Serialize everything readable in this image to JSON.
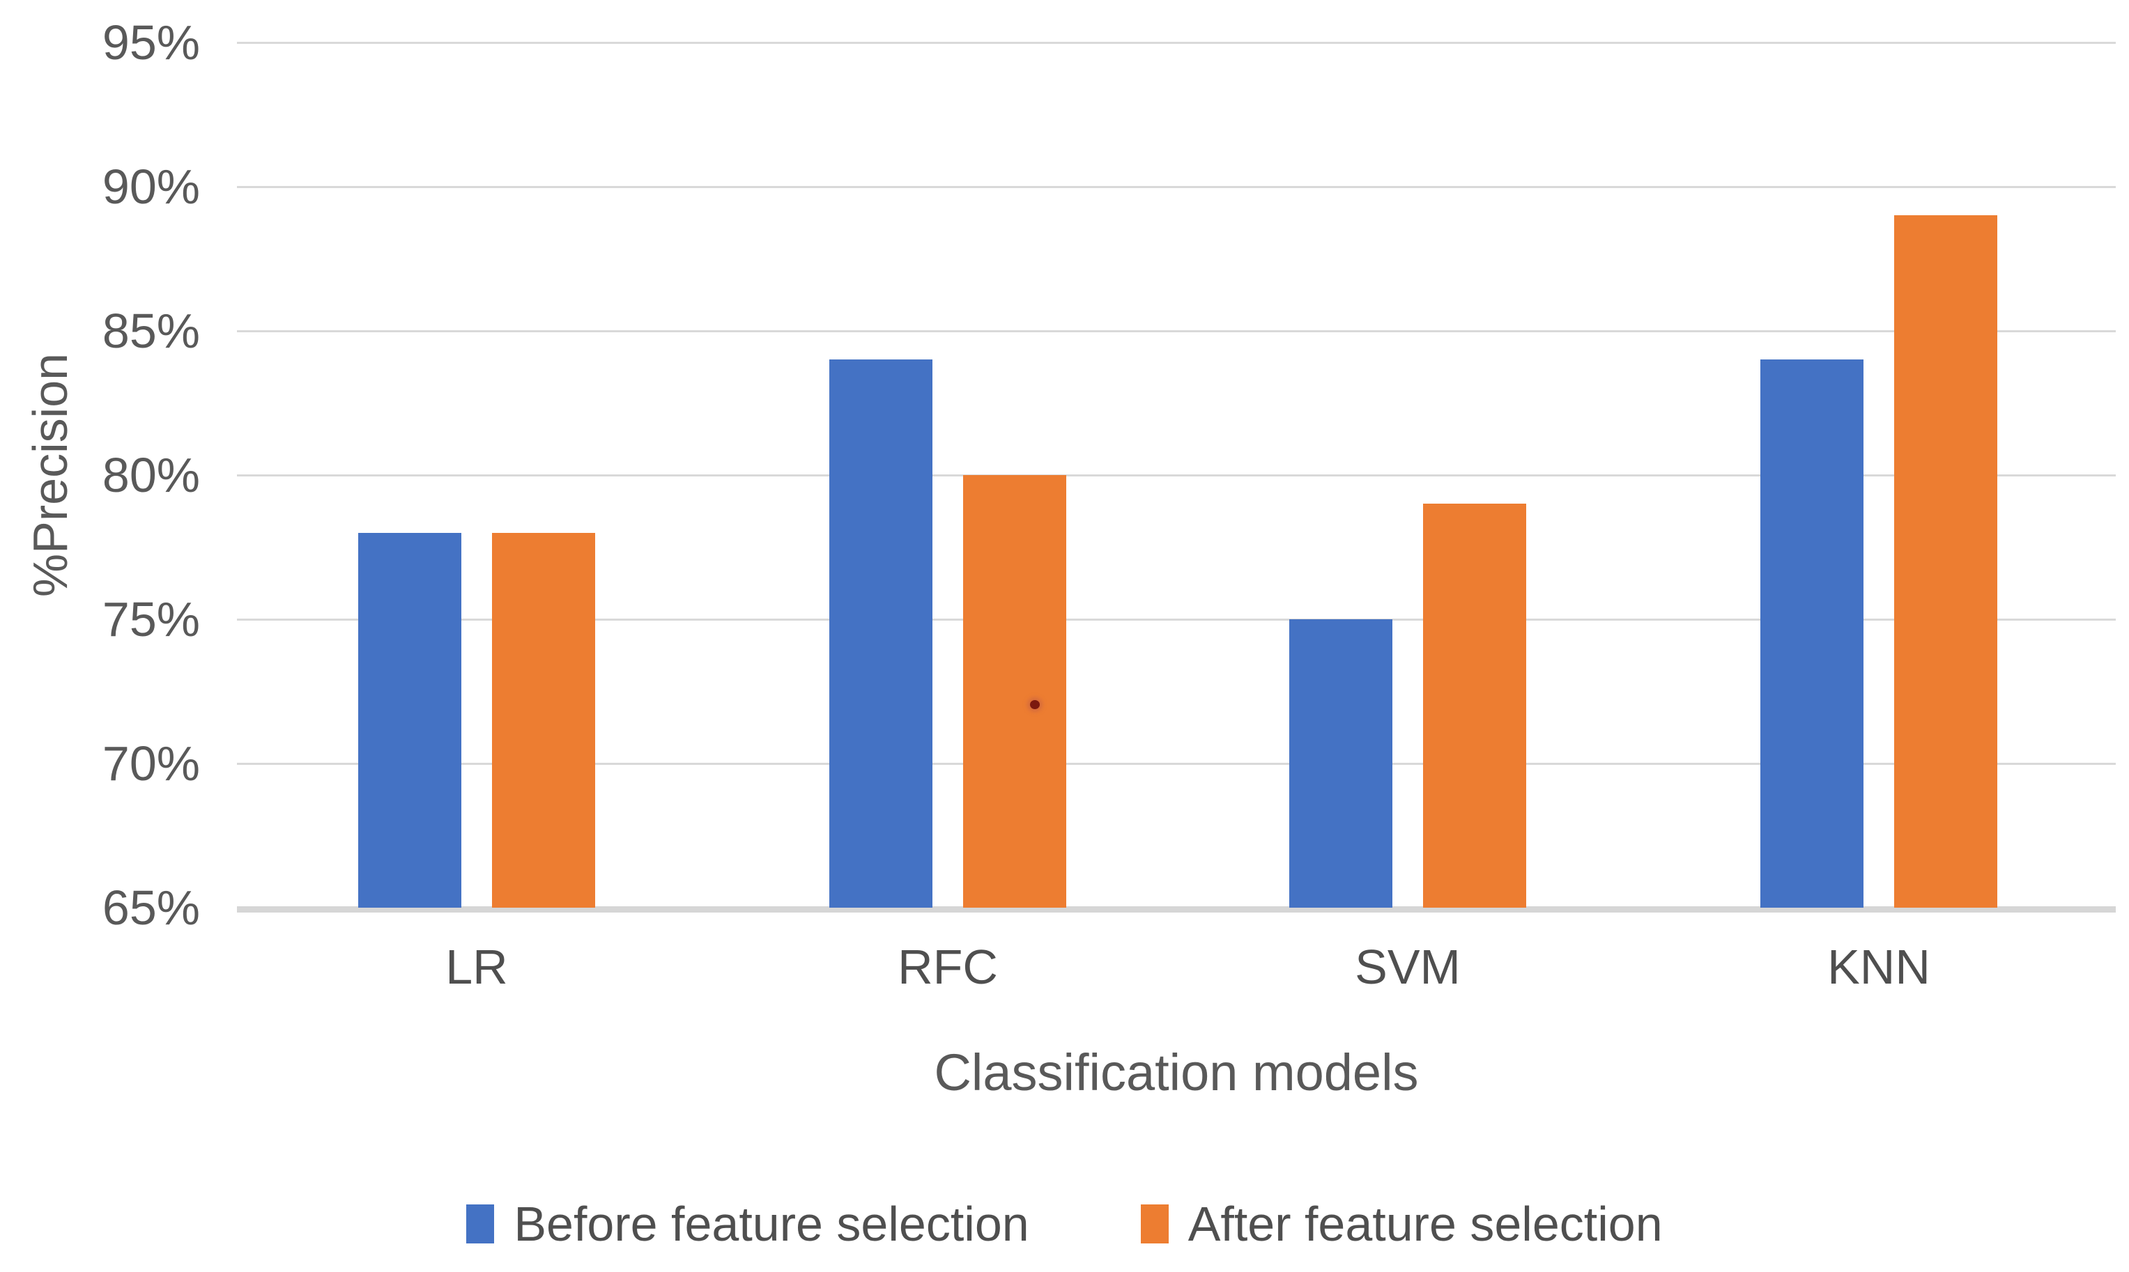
{
  "chart_data": {
    "type": "bar",
    "title": "",
    "categories": [
      "LR",
      "RFC",
      "SVM",
      "KNN"
    ],
    "series": [
      {
        "name": "Before feature selection",
        "color": "#4472C4",
        "values": [
          78,
          84,
          75,
          84
        ]
      },
      {
        "name": "After feature selection",
        "color": "#ED7D31",
        "values": [
          78,
          80,
          79,
          89
        ]
      }
    ],
    "xlabel": "Classification models",
    "ylabel": "%Precision",
    "ylim": [
      65,
      95
    ],
    "ytick_step": 5,
    "ytick_labels": [
      "65%",
      "70%",
      "75%",
      "80%",
      "85%",
      "90%",
      "95%"
    ],
    "grid": true,
    "legend_position": "bottom"
  },
  "colors": {
    "background": "#FFFFFF",
    "gridline": "#D9D9D9",
    "axis_line": "#D6D6D6",
    "tick_text": "#595959",
    "series_before": "#4472C4",
    "series_after": "#ED7D31"
  }
}
